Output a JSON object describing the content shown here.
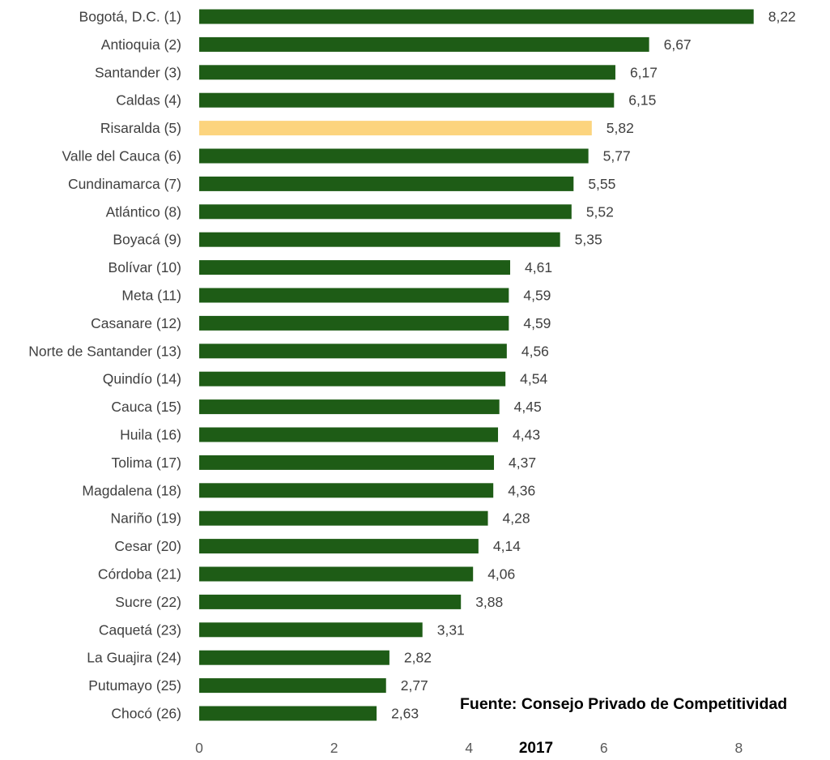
{
  "chart_data": {
    "type": "bar",
    "orientation": "horizontal",
    "categories": [
      "Bogotá, D.C. (1)",
      "Antioquia (2)",
      "Santander (3)",
      "Caldas (4)",
      "Risaralda (5)",
      "Valle del Cauca (6)",
      "Cundinamarca (7)",
      "Atlántico (8)",
      "Boyacá (9)",
      "Bolívar (10)",
      "Meta (11)",
      "Casanare (12)",
      "Norte de Santander (13)",
      "Quindío (14)",
      "Cauca (15)",
      "Huila (16)",
      "Tolima (17)",
      "Magdalena (18)",
      "Nariño (19)",
      "Cesar (20)",
      "Córdoba (21)",
      "Sucre (22)",
      "Caquetá (23)",
      "La Guajira (24)",
      "Putumayo (25)",
      "Chocó (26)"
    ],
    "values": [
      8.22,
      6.67,
      6.17,
      6.15,
      5.82,
      5.77,
      5.55,
      5.52,
      5.35,
      4.61,
      4.59,
      4.59,
      4.56,
      4.54,
      4.45,
      4.43,
      4.37,
      4.36,
      4.28,
      4.14,
      4.06,
      3.88,
      3.31,
      2.82,
      2.77,
      2.63
    ],
    "value_labels": [
      "8,22",
      "6,67",
      "6,17",
      "6,15",
      "5,82",
      "5,77",
      "5,55",
      "5,52",
      "5,35",
      "4,61",
      "4,59",
      "4,59",
      "4,56",
      "4,54",
      "4,45",
      "4,43",
      "4,37",
      "4,36",
      "4,28",
      "4,14",
      "4,06",
      "3,88",
      "3,31",
      "2,82",
      "2,77",
      "2,63"
    ],
    "highlight_index": 4,
    "xlabel": "2017",
    "ylabel": "",
    "xlim": [
      0,
      9
    ],
    "x_ticks": [
      0,
      2,
      4,
      6,
      8
    ],
    "x_tick_labels": [
      "0",
      "2",
      "4",
      "6",
      "8"
    ],
    "grid": false,
    "legend": "none",
    "colors": {
      "bar": "#1e5c16",
      "highlight": "#fcd47e"
    }
  },
  "source_note": "Fuente: Consejo Privado de Competitividad"
}
